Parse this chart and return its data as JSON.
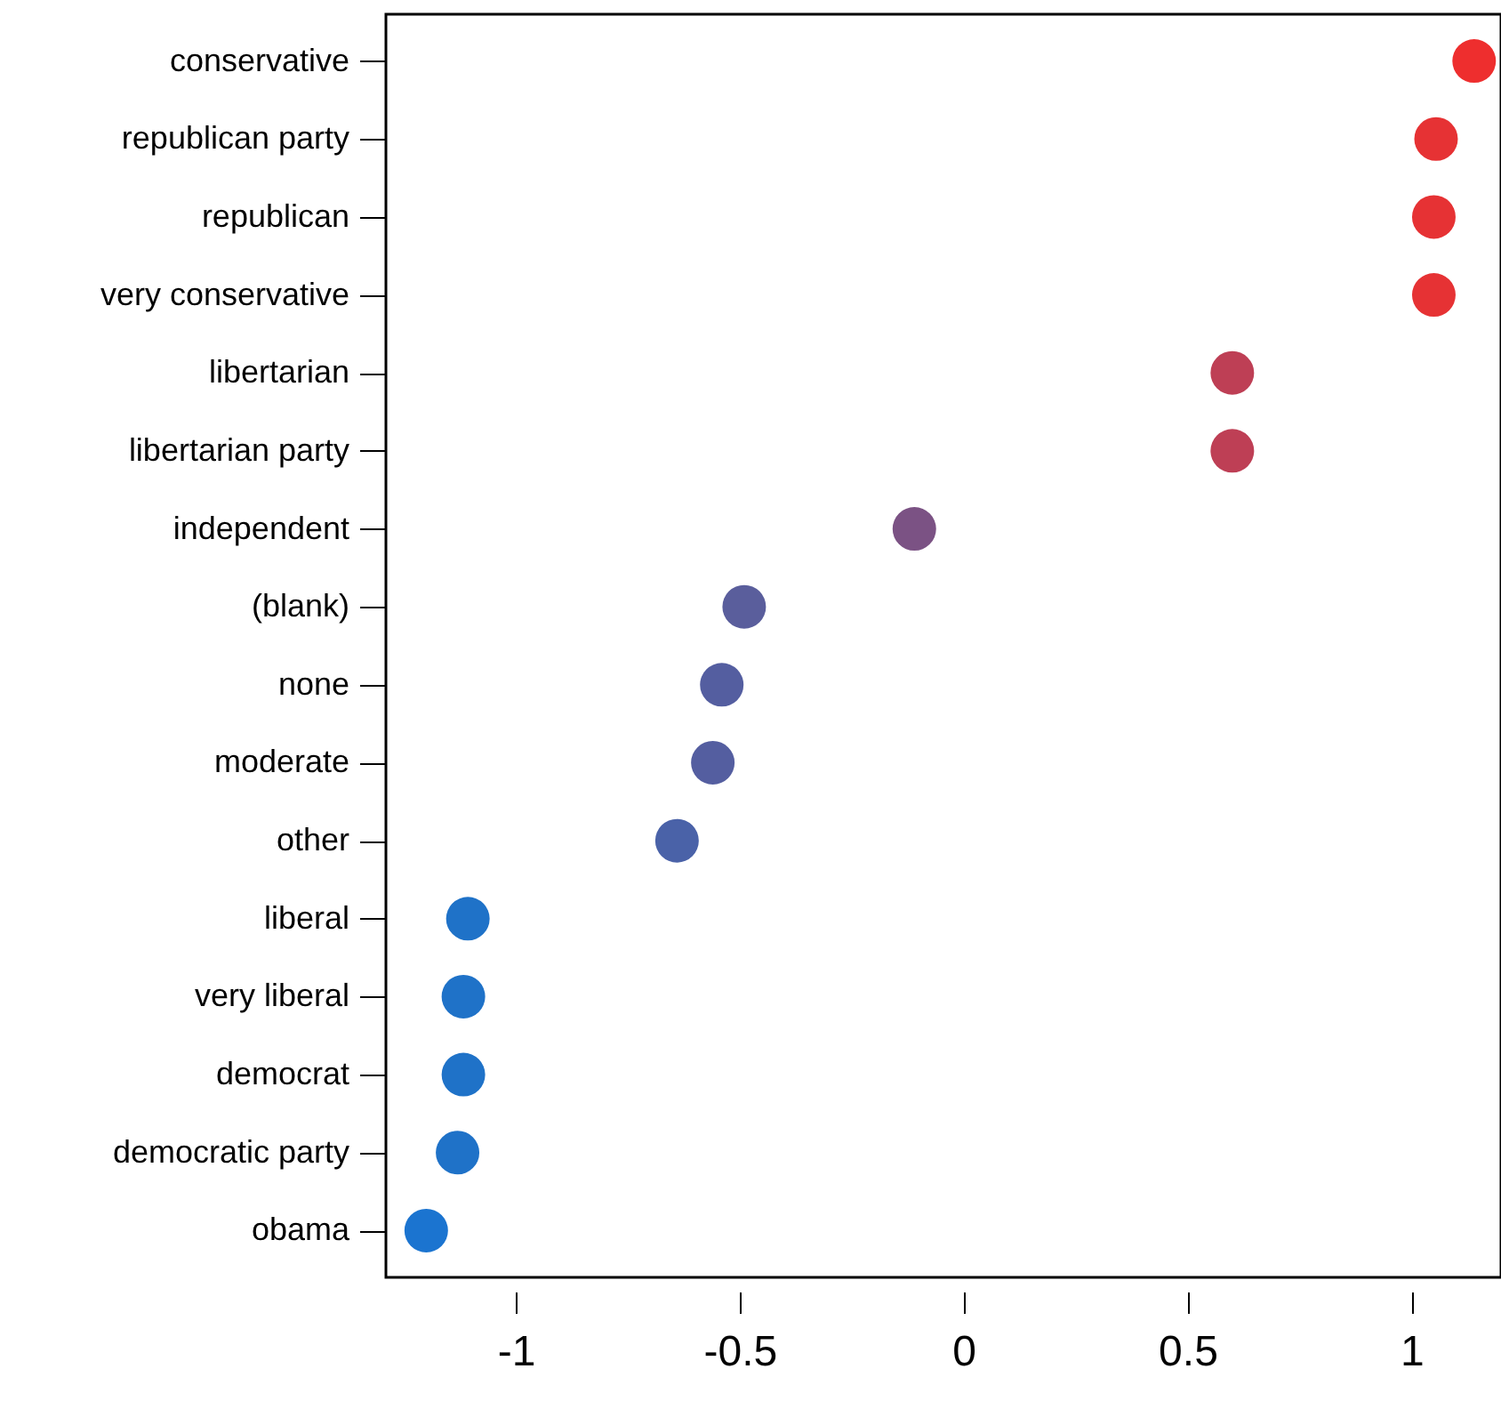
{
  "chart_data": {
    "type": "scatter",
    "orientation": "horizontal",
    "marker": "circle",
    "grid": false,
    "categories": [
      "conservative",
      "republican party",
      "republican",
      "very conservative",
      "libertarian",
      "libertarian party",
      "independent",
      "(blank)",
      "none",
      "moderate",
      "other",
      "liberal",
      "very liberal",
      "democrat",
      "democratic party",
      "obama"
    ],
    "values": [
      1.14,
      1.055,
      1.05,
      1.05,
      0.6,
      0.6,
      -0.11,
      -0.49,
      -0.54,
      -0.56,
      -0.64,
      -1.107,
      -1.117,
      -1.117,
      -1.13,
      -1.2
    ],
    "colors": [
      "#ee2e2e",
      "#e63234",
      "#e63234",
      "#e63234",
      "#be3f55",
      "#be3f55",
      "#7b5284",
      "#5a5e9c",
      "#545ea0",
      "#545ea0",
      "#4a62a8",
      "#1f72c8",
      "#1f72c8",
      "#1f72c8",
      "#1f72c8",
      "#1b74d0"
    ],
    "xlim": [
      -1.29,
      1.2
    ],
    "xticks": [
      -1,
      -0.5,
      0,
      0.5,
      1
    ]
  }
}
